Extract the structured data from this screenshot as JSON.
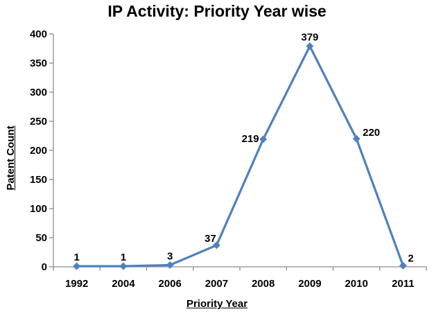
{
  "chart_data": {
    "type": "line",
    "title": "IP Activity: Priority Year wise",
    "xlabel": "Priority Year",
    "ylabel": "Patent Count",
    "categories": [
      "1992",
      "2004",
      "2006",
      "2007",
      "2008",
      "2009",
      "2010",
      "2011"
    ],
    "values": [
      1,
      1,
      3,
      37,
      219,
      379,
      220,
      2
    ],
    "data_labels": [
      "1",
      "1",
      "3",
      "37",
      "219",
      "379",
      "220",
      "2"
    ],
    "data_label_positions": [
      "above",
      "above",
      "above",
      "above-left",
      "left",
      "above",
      "right",
      "above-right"
    ],
    "ylim": [
      0,
      400
    ],
    "ytick_step": 50,
    "grid": false,
    "legend": "none",
    "marker": "diamond",
    "line_color": "#4F81BD",
    "axis_color": "#8C8C8C",
    "text_color": "#000000"
  }
}
